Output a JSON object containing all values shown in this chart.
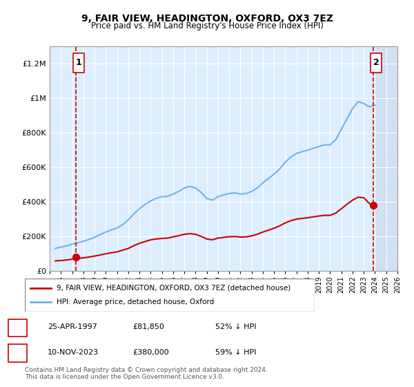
{
  "title": "9, FAIR VIEW, HEADINGTON, OXFORD, OX3 7EZ",
  "subtitle": "Price paid vs. HM Land Registry's House Price Index (HPI)",
  "hpi_label": "HPI: Average price, detached house, Oxford",
  "property_label": "9, FAIR VIEW, HEADINGTON, OXFORD, OX3 7EZ (detached house)",
  "sale1_date": "25-APR-1997",
  "sale1_price": 81850,
  "sale1_pct": "52% ↓ HPI",
  "sale2_date": "10-NOV-2023",
  "sale2_price": 380000,
  "sale2_pct": "59% ↓ HPI",
  "sale1_year": 1997.32,
  "sale2_year": 2023.86,
  "xlim": [
    1995,
    2026
  ],
  "ylim": [
    0,
    1300000
  ],
  "yticks": [
    0,
    200000,
    400000,
    600000,
    800000,
    1000000,
    1200000
  ],
  "ytick_labels": [
    "£0",
    "£200K",
    "£400K",
    "£600K",
    "£800K",
    "£1M",
    "£1.2M"
  ],
  "xticks": [
    1995,
    1996,
    1997,
    1998,
    1999,
    2000,
    2001,
    2002,
    2003,
    2004,
    2005,
    2006,
    2007,
    2008,
    2009,
    2010,
    2011,
    2012,
    2013,
    2014,
    2015,
    2016,
    2017,
    2018,
    2019,
    2020,
    2021,
    2022,
    2023,
    2024,
    2025,
    2026
  ],
  "hpi_color": "#6eb4e8",
  "property_color": "#cc0000",
  "bg_color": "#ddeeff",
  "hatch_color": "#bbccdd",
  "grid_color": "#ffffff",
  "vline_color": "#cc0000",
  "footnote": "Contains HM Land Registry data © Crown copyright and database right 2024.\nThis data is licensed under the Open Government Licence v3.0.",
  "hpi_data": {
    "years": [
      1995.5,
      1996.0,
      1996.5,
      1997.0,
      1997.5,
      1998.0,
      1998.5,
      1999.0,
      1999.5,
      2000.0,
      2000.5,
      2001.0,
      2001.5,
      2002.0,
      2002.5,
      2003.0,
      2003.5,
      2004.0,
      2004.5,
      2005.0,
      2005.5,
      2006.0,
      2006.5,
      2007.0,
      2007.5,
      2008.0,
      2008.5,
      2009.0,
      2009.5,
      2010.0,
      2010.5,
      2011.0,
      2011.5,
      2012.0,
      2012.5,
      2013.0,
      2013.5,
      2014.0,
      2014.5,
      2015.0,
      2015.5,
      2016.0,
      2016.5,
      2017.0,
      2017.5,
      2018.0,
      2018.5,
      2019.0,
      2019.5,
      2020.0,
      2020.5,
      2021.0,
      2021.5,
      2022.0,
      2022.5,
      2023.0,
      2023.5,
      2024.0
    ],
    "values": [
      130000,
      138000,
      145000,
      155000,
      163000,
      172000,
      182000,
      195000,
      210000,
      225000,
      238000,
      248000,
      268000,
      295000,
      330000,
      360000,
      385000,
      405000,
      420000,
      430000,
      432000,
      445000,
      460000,
      480000,
      490000,
      480000,
      455000,
      420000,
      410000,
      430000,
      440000,
      448000,
      452000,
      445000,
      448000,
      460000,
      480000,
      510000,
      535000,
      560000,
      590000,
      630000,
      660000,
      680000,
      690000,
      700000,
      710000,
      720000,
      730000,
      730000,
      760000,
      820000,
      880000,
      940000,
      980000,
      970000,
      950000,
      960000
    ]
  },
  "property_data": {
    "years": [
      1995.5,
      1996.0,
      1996.5,
      1997.0,
      1997.32,
      1997.5,
      1998.0,
      1998.5,
      1999.0,
      1999.5,
      2000.0,
      2000.5,
      2001.0,
      2001.5,
      2002.0,
      2002.5,
      2003.0,
      2003.5,
      2004.0,
      2004.5,
      2005.0,
      2005.5,
      2006.0,
      2006.5,
      2007.0,
      2007.5,
      2008.0,
      2008.5,
      2009.0,
      2009.5,
      2010.0,
      2010.5,
      2011.0,
      2011.5,
      2012.0,
      2012.5,
      2013.0,
      2013.5,
      2014.0,
      2014.5,
      2015.0,
      2015.5,
      2016.0,
      2016.5,
      2017.0,
      2017.5,
      2018.0,
      2018.5,
      2019.0,
      2019.5,
      2020.0,
      2020.5,
      2021.0,
      2021.5,
      2022.0,
      2022.5,
      2023.0,
      2023.5,
      2023.86,
      2024.0
    ],
    "values": [
      58000,
      60000,
      63000,
      68000,
      81850,
      72000,
      76000,
      80000,
      86000,
      92000,
      99000,
      105000,
      110000,
      120000,
      130000,
      146000,
      160000,
      170000,
      180000,
      185000,
      188000,
      190000,
      197000,
      204000,
      212000,
      216000,
      212000,
      200000,
      185000,
      180000,
      190000,
      194000,
      198000,
      199000,
      196000,
      197000,
      203000,
      212000,
      225000,
      236000,
      247000,
      261000,
      278000,
      291000,
      300000,
      304000,
      308000,
      313000,
      318000,
      322000,
      322000,
      335000,
      360000,
      386000,
      410000,
      427000,
      424000,
      390000,
      380000,
      380000
    ]
  }
}
